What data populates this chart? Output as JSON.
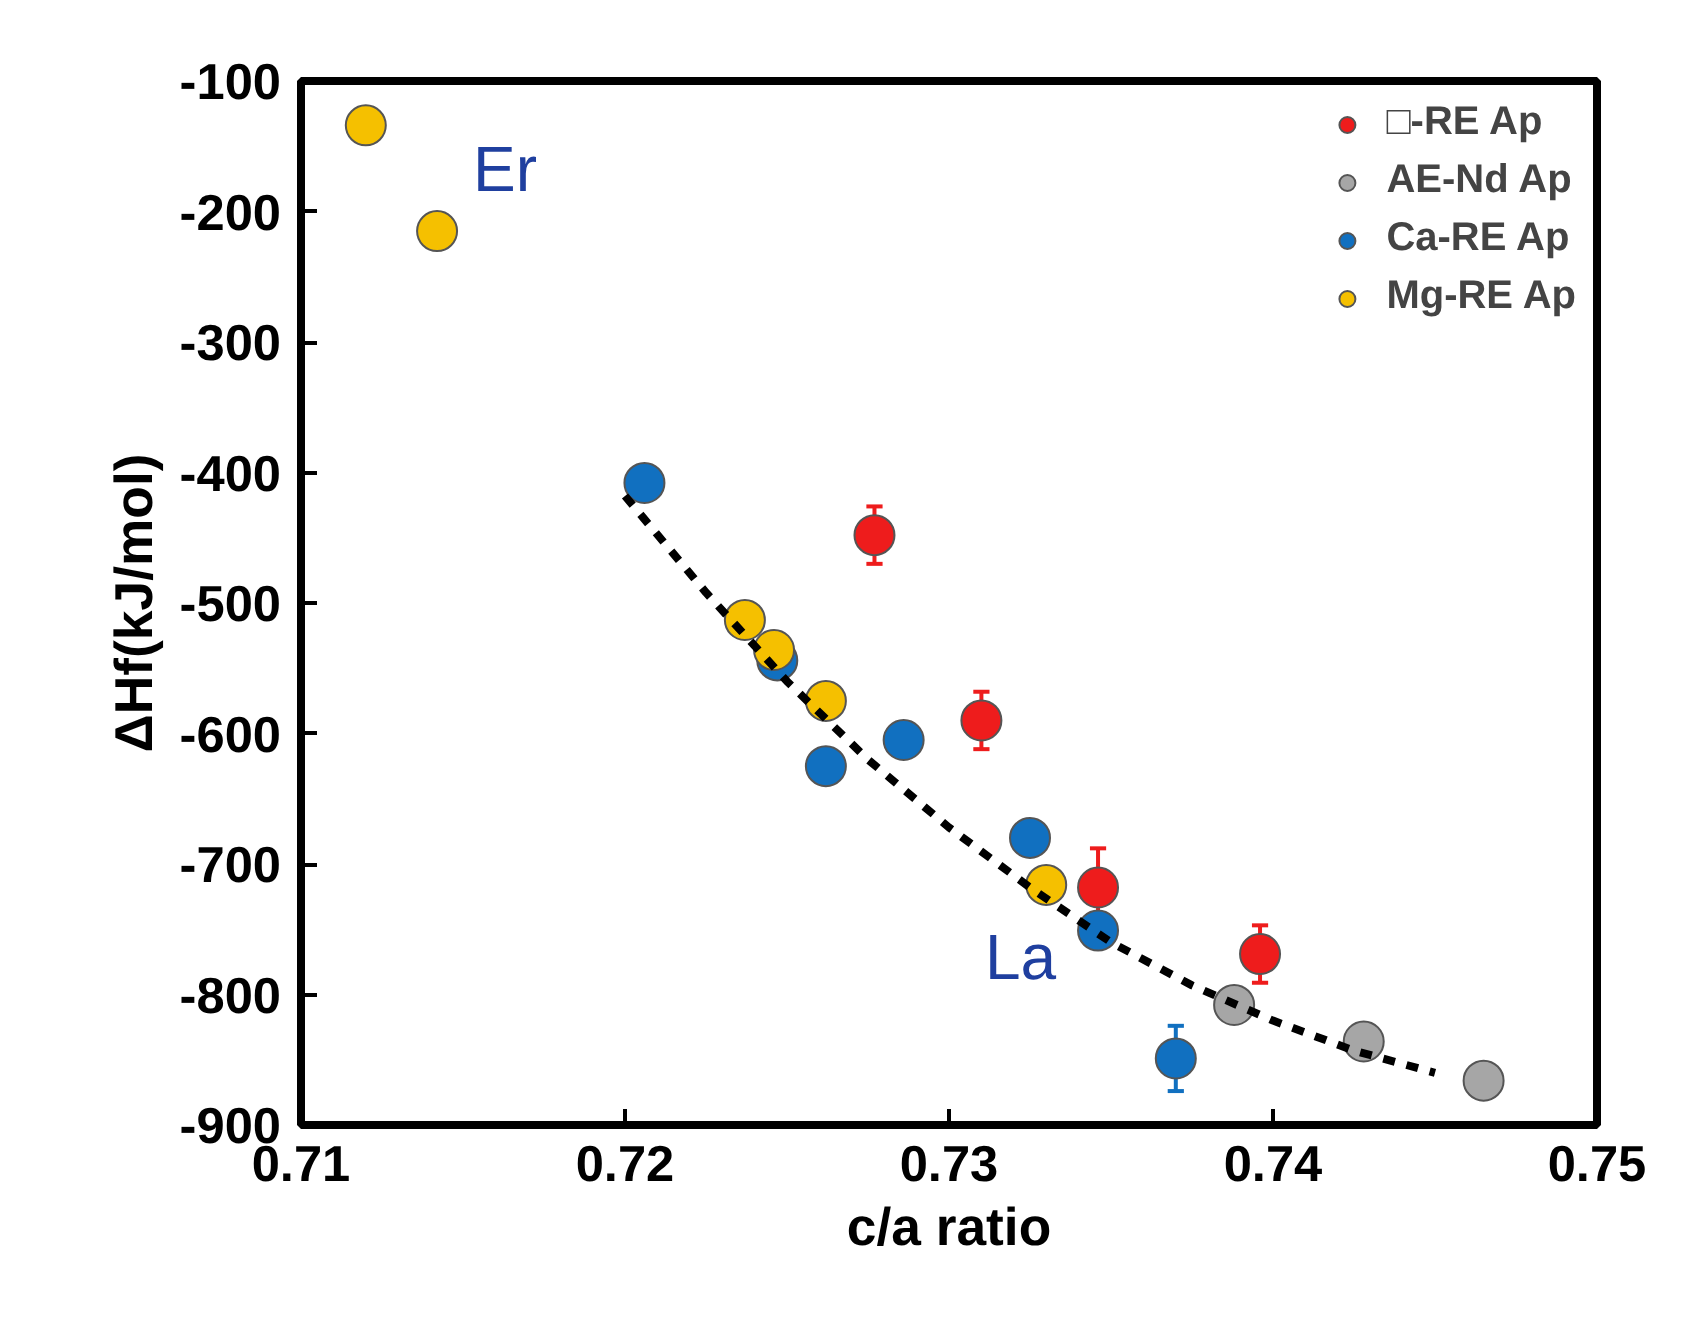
{
  "chart_data": {
    "type": "scatter",
    "xlabel": "c/a ratio",
    "ylabel": "ΔHf(kJ/mol)",
    "xlim": [
      0.71,
      0.75
    ],
    "xticks": [
      0.71,
      0.72,
      0.73,
      0.74,
      0.75
    ],
    "ylim": [
      -900,
      -100
    ],
    "yticks": [
      -900,
      -800,
      -700,
      -600,
      -500,
      -400,
      -300,
      -200,
      -100
    ],
    "grid": false,
    "legend": "top right",
    "marker": "circle",
    "series": [
      {
        "name": "□-RE Ap",
        "color": "#ee1c1c",
        "x": [
          0.7277,
          0.731,
          0.7346,
          0.7396
        ],
        "values": [
          -448,
          -590,
          -718,
          -769
        ],
        "errors": [
          22,
          22,
          30,
          22
        ]
      },
      {
        "name": "AE-Nd Ap",
        "color": "#a6a6a6",
        "x": [
          0.7388,
          0.7428,
          0.7465
        ],
        "values": [
          -808,
          -836,
          -866
        ]
      },
      {
        "name": "Ca-RE Ap",
        "color": "#1170c0",
        "x": [
          0.7206,
          0.7247,
          0.7262,
          0.7286,
          0.7325,
          0.7346,
          0.737
        ],
        "values": [
          -408,
          -544,
          -625,
          -605,
          -680,
          -751,
          -849
        ],
        "errors": [
          12,
          null,
          null,
          12,
          null,
          null,
          25
        ]
      },
      {
        "name": "Mg-RE Ap",
        "color": "#f5c000",
        "x": [
          0.712,
          0.7142,
          0.7237,
          0.7246,
          0.7262,
          0.733
        ],
        "values": [
          -134,
          -215,
          -513,
          -536,
          -575,
          -716
        ]
      },
      {
        "type": "line",
        "marker": "none",
        "line_style": "dashed",
        "color": "#000000",
        "x": [
          0.72,
          0.7225,
          0.725,
          0.7275,
          0.73,
          0.7325,
          0.735,
          0.7375,
          0.74,
          0.7425,
          0.745
        ],
        "values": [
          -418,
          -492,
          -560,
          -620,
          -672,
          -718,
          -760,
          -793,
          -820,
          -843,
          -860
        ]
      }
    ],
    "annotations": [
      "Er",
      "La"
    ]
  }
}
